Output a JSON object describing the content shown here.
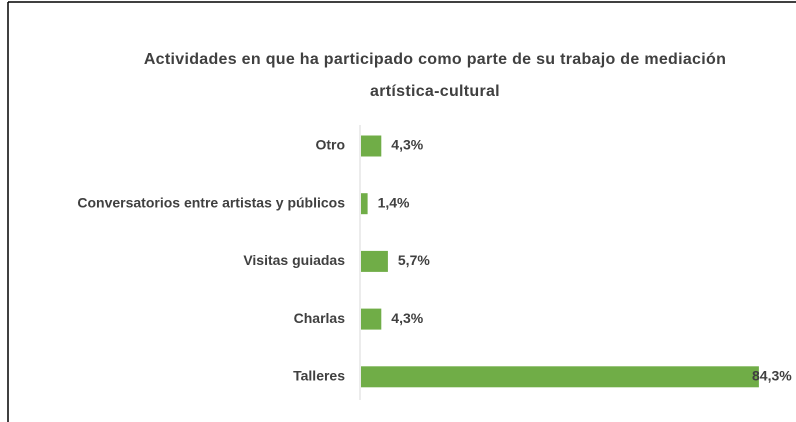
{
  "chart_data": {
    "type": "bar",
    "orientation": "horizontal",
    "title": "Actividades en que ha participado como parte de su trabajo de mediación artística-cultural",
    "categories": [
      "Otro",
      "Conversatorios entre artistas y públicos",
      "Visitas guiadas",
      "Charlas",
      "Talleres"
    ],
    "values": [
      4.3,
      1.4,
      5.7,
      4.3,
      84.3
    ],
    "value_labels": [
      "4,3%",
      "1,4%",
      "5,7%",
      "4,3%",
      "84,3%"
    ],
    "color": "#70ad47"
  }
}
